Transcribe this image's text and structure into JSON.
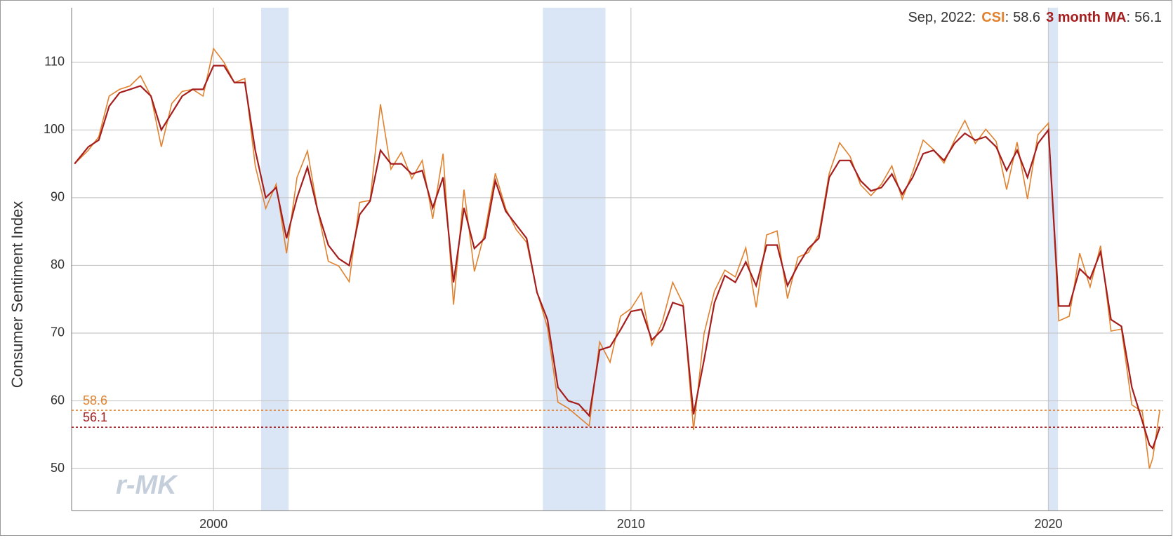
{
  "chart_data": {
    "type": "line",
    "ylabel": "Consumer Sentiment Index",
    "watermark": "r-MK",
    "readout": {
      "date": "Sep, 2022",
      "separator": ":"
    },
    "xlim": [
      1996.6,
      2022.75
    ],
    "xticks": [
      2000,
      2010,
      2020
    ],
    "ylim": [
      43.8,
      118.05
    ],
    "yticks": [
      50,
      60,
      70,
      80,
      90,
      100,
      110
    ],
    "grid": true,
    "recession_color": "#dae6f6",
    "recessions": [
      [
        2001.14,
        2001.8
      ],
      [
        2007.89,
        2009.39
      ],
      [
        2020.0,
        2020.23
      ]
    ],
    "x": [
      1996.67,
      1997,
      1997.25,
      1997.5,
      1997.75,
      1998,
      1998.25,
      1998.5,
      1998.75,
      1999,
      1999.25,
      1999.5,
      1999.75,
      2000,
      2000.25,
      2000.5,
      2000.75,
      2001,
      2001.25,
      2001.5,
      2001.75,
      2002,
      2002.25,
      2002.5,
      2002.75,
      2003,
      2003.25,
      2003.5,
      2003.75,
      2004,
      2004.25,
      2004.5,
      2004.75,
      2005,
      2005.25,
      2005.5,
      2005.75,
      2006,
      2006.25,
      2006.5,
      2006.75,
      2007,
      2007.25,
      2007.5,
      2007.75,
      2008,
      2008.25,
      2008.5,
      2008.75,
      2009,
      2009.25,
      2009.5,
      2009.75,
      2010,
      2010.25,
      2010.5,
      2010.75,
      2011,
      2011.25,
      2011.5,
      2011.75,
      2012,
      2012.25,
      2012.5,
      2012.75,
      2013,
      2013.25,
      2013.5,
      2013.75,
      2014,
      2014.25,
      2014.5,
      2014.75,
      2015,
      2015.25,
      2015.5,
      2015.75,
      2016,
      2016.25,
      2016.5,
      2016.75,
      2017,
      2017.25,
      2017.5,
      2017.75,
      2018,
      2018.25,
      2018.5,
      2018.75,
      2019,
      2019.25,
      2019.5,
      2019.75,
      2020,
      2020.25,
      2020.5,
      2020.75,
      2021,
      2021.25,
      2021.5,
      2021.75,
      2022,
      2022.25,
      2022.42,
      2022.5,
      2022.67
    ],
    "series": [
      {
        "name": "CSI",
        "color": "#e0822f",
        "values": [
          95,
          97,
          99,
          105,
          106,
          106.5,
          108,
          105,
          97.5,
          103.9,
          105.7,
          106,
          105,
          112,
          110,
          107,
          107.6,
          94.7,
          88.4,
          92,
          81.8,
          93,
          96.9,
          88,
          80.6,
          79.9,
          77.6,
          89.3,
          89.6,
          103.8,
          94.2,
          96.7,
          92.8,
          95.5,
          86.9,
          96.5,
          74.2,
          91.2,
          79.1,
          84.9,
          93.6,
          88.4,
          85.3,
          83.4,
          76.1,
          70.8,
          59.8,
          58.9,
          57.6,
          56.3,
          68.7,
          65.7,
          72.5,
          73.6,
          76,
          68.2,
          71.6,
          77.5,
          74.3,
          55.7,
          69.9,
          76.2,
          79.3,
          78.3,
          82.6,
          73.8,
          84.5,
          85.1,
          75.1,
          81.2,
          81.9,
          84.6,
          93.6,
          98.1,
          96.1,
          91.9,
          90.3,
          92,
          94.7,
          89.8,
          93.8,
          98.5,
          97.1,
          95.1,
          98.5,
          101.4,
          98,
          100.1,
          98.3,
          91.2,
          98.2,
          89.8,
          99.3,
          101,
          71.8,
          72.5,
          81.8,
          76.8,
          82.9,
          70.3,
          70.6,
          59.4,
          58.4,
          50,
          51.5,
          58.6
        ]
      },
      {
        "name": "3 month MA",
        "color": "#a51d1d",
        "values": [
          95,
          97.5,
          98.5,
          103.5,
          105.5,
          106,
          106.5,
          105,
          100,
          102.5,
          105,
          106,
          106,
          109.5,
          109.5,
          107,
          107,
          97,
          90,
          91.5,
          84,
          90,
          94.5,
          88,
          83,
          81,
          80,
          87.5,
          89.5,
          97,
          95,
          95,
          93.5,
          94,
          88.5,
          93,
          77.5,
          88.5,
          82.5,
          84,
          92.5,
          88,
          86,
          84,
          76,
          72,
          62,
          60,
          59.5,
          57.8,
          67.5,
          68,
          70.5,
          73.2,
          73.5,
          69,
          70.5,
          74.5,
          74,
          58,
          66,
          74.5,
          78.5,
          77.5,
          80.5,
          77,
          83,
          83,
          77,
          80,
          82.5,
          84,
          93,
          95.5,
          95.5,
          92.5,
          91,
          91.5,
          93.5,
          90.5,
          93,
          96.5,
          97,
          95.5,
          98,
          99.5,
          98.5,
          99,
          97.5,
          94,
          97,
          93,
          98,
          100,
          74,
          74,
          79.5,
          78,
          82,
          72,
          71,
          62,
          57,
          53.5,
          53,
          56.1
        ]
      }
    ]
  }
}
